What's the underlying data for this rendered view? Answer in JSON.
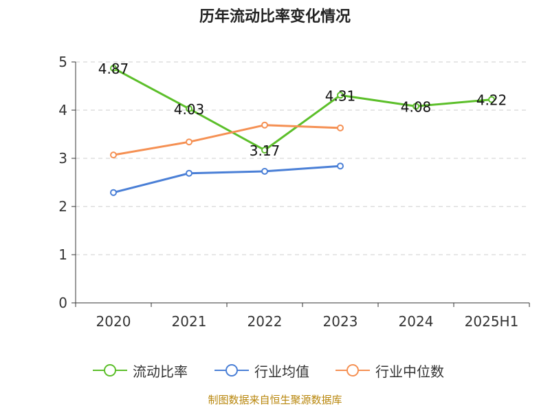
{
  "title": "历年流动比率变化情况",
  "footer": "制图数据来自恒生聚源数据库",
  "chart_data": {
    "type": "line",
    "categories": [
      "2020",
      "2021",
      "2022",
      "2023",
      "2024",
      "2025H1"
    ],
    "ylim": [
      0,
      5
    ],
    "yticks": [
      "0",
      "1",
      "2",
      "3",
      "4",
      "5"
    ],
    "grid": true,
    "legend_position": "bottom",
    "series": [
      {
        "name": "流动比率",
        "color": "#5cbf2a",
        "values": [
          4.87,
          4.03,
          3.17,
          4.31,
          4.08,
          4.22
        ],
        "labels": [
          "4.87",
          "4.03",
          "3.17",
          "4.31",
          "4.08",
          "4.22"
        ],
        "show_labels": true
      },
      {
        "name": "行业均值",
        "color": "#4a7fd6",
        "values": [
          2.29,
          2.69,
          2.73,
          2.84,
          null,
          null
        ],
        "show_labels": false
      },
      {
        "name": "行业中位数",
        "color": "#f59053",
        "values": [
          3.07,
          3.34,
          3.69,
          3.63,
          null,
          null
        ],
        "show_labels": false
      }
    ]
  }
}
